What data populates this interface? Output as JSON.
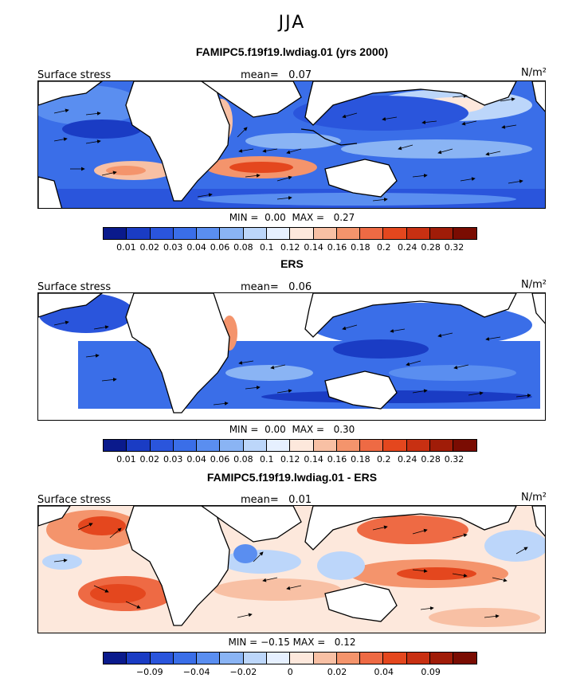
{
  "season": "JJA",
  "colors": {
    "palette": [
      "#0a1a8c",
      "#1a3cc4",
      "#2a55dc",
      "#3a6ee8",
      "#5a8ef0",
      "#8ab4f4",
      "#bcd6fa",
      "#e6f0ff",
      "#fde8dc",
      "#f8c0a4",
      "#f4946c",
      "#ee6a44",
      "#e4471e",
      "#c83012",
      "#a01c08",
      "#7a0c02"
    ]
  },
  "panels": [
    {
      "title": "FAMIPC5.f19f19.lwdiag.01 (yrs 2000)",
      "field_label": "Surface stress",
      "mean_label": "mean=",
      "mean_value": "0.07",
      "units": "N/m²",
      "min_label": "MIN =",
      "min_value": "0.00",
      "max_label": "MAX =",
      "max_value": "0.27",
      "colorbar_ticks": [
        "0.01",
        "0.02",
        "0.03",
        "0.04",
        "0.06",
        "0.08",
        "0.1",
        "0.12",
        "0.14",
        "0.16",
        "0.18",
        "0.2",
        "0.24",
        "0.28",
        "0.32"
      ]
    },
    {
      "title": "ERS",
      "field_label": "Surface stress",
      "mean_label": "mean=",
      "mean_value": "0.06",
      "units": "N/m²",
      "min_label": "MIN =",
      "min_value": "0.00",
      "max_label": "MAX =",
      "max_value": "0.30",
      "colorbar_ticks": [
        "0.01",
        "0.02",
        "0.03",
        "0.04",
        "0.06",
        "0.08",
        "0.1",
        "0.12",
        "0.14",
        "0.16",
        "0.18",
        "0.2",
        "0.24",
        "0.28",
        "0.32"
      ]
    },
    {
      "title": "FAMIPC5.f19f19.lwdiag.01 - ERS",
      "field_label": "Surface stress",
      "mean_label": "mean=",
      "mean_value": "0.01",
      "units": "N/m²",
      "min_label": "MIN =",
      "min_value": "−0.15",
      "max_label": "MAX =",
      "max_value": "0.12",
      "colorbar_ticks": [
        "",
        "−0.09",
        "",
        "−0.04",
        "",
        "−0.02",
        "",
        "0",
        "",
        "0.02",
        "",
        "0.04",
        "",
        "0.09",
        ""
      ]
    }
  ],
  "chart_data": [
    {
      "type": "heatmap",
      "title": "FAMIPC5.f19f19.lwdiag.01 (yrs 2000)",
      "variable": "Surface stress",
      "units": "N/m²",
      "mean": 0.07,
      "min": 0.0,
      "max": 0.27,
      "levels": [
        0.01,
        0.02,
        0.03,
        0.04,
        0.06,
        0.08,
        0.1,
        0.12,
        0.14,
        0.16,
        0.18,
        0.2,
        0.24,
        0.28,
        0.32
      ]
    },
    {
      "type": "heatmap",
      "title": "ERS",
      "variable": "Surface stress",
      "units": "N/m²",
      "mean": 0.06,
      "min": 0.0,
      "max": 0.3,
      "levels": [
        0.01,
        0.02,
        0.03,
        0.04,
        0.06,
        0.08,
        0.1,
        0.12,
        0.14,
        0.16,
        0.18,
        0.2,
        0.24,
        0.28,
        0.32
      ]
    },
    {
      "type": "heatmap",
      "title": "FAMIPC5.f19f19.lwdiag.01 - ERS",
      "variable": "Surface stress",
      "units": "N/m²",
      "mean": 0.01,
      "min": -0.15,
      "max": 0.12,
      "levels": [
        -0.09,
        -0.04,
        -0.02,
        0,
        0.02,
        0.04,
        0.09
      ]
    }
  ]
}
